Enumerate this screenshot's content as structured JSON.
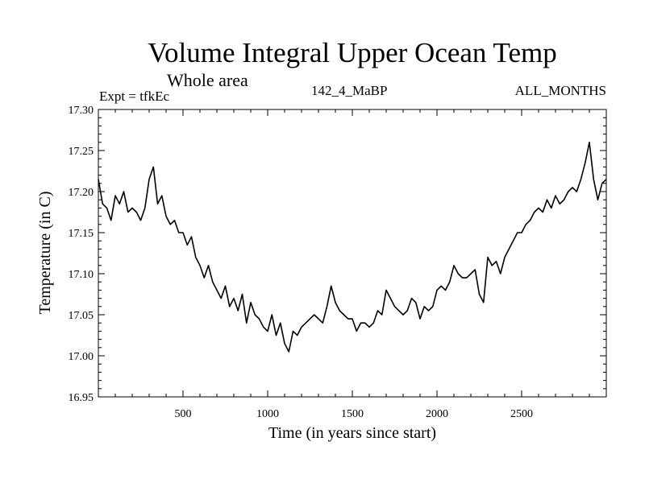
{
  "chart_data": {
    "type": "line",
    "title": "Volume Integral Upper Ocean Temp",
    "subtitle": "Whole area",
    "annotations": {
      "expt": "Expt = tfkEc",
      "run": "142_4_MaBP",
      "months": "ALL_MONTHS"
    },
    "xlabel": "Time (in years since start)",
    "ylabel": "Temperature (in C)",
    "xlim": [
      0,
      3000
    ],
    "ylim": [
      16.95,
      17.3
    ],
    "xticks": [
      "500",
      "1000",
      "1500",
      "2000",
      "2500"
    ],
    "yticks": [
      "16.95",
      "17.00",
      "17.05",
      "17.10",
      "17.15",
      "17.20",
      "17.25",
      "17.30"
    ],
    "grid": false,
    "color": "#000000",
    "series": [
      {
        "x": [
          0,
          25,
          50,
          75,
          100,
          125,
          150,
          175,
          200,
          225,
          250,
          275,
          300,
          325,
          350,
          375,
          400,
          425,
          450,
          475,
          500,
          525,
          550,
          575,
          600,
          625,
          650,
          675,
          700,
          725,
          750,
          775,
          800,
          825,
          850,
          875,
          900,
          925,
          950,
          975,
          1000,
          1025,
          1050,
          1075,
          1100,
          1125,
          1150,
          1175,
          1200,
          1225,
          1250,
          1275,
          1300,
          1325,
          1350,
          1375,
          1400,
          1425,
          1450,
          1475,
          1500,
          1525,
          1550,
          1575,
          1600,
          1625,
          1650,
          1675,
          1700,
          1725,
          1750,
          1775,
          1800,
          1825,
          1850,
          1875,
          1900,
          1925,
          1950,
          1975,
          2000,
          2025,
          2050,
          2075,
          2100,
          2125,
          2150,
          2175,
          2200,
          2225,
          2250,
          2275,
          2300,
          2325,
          2350,
          2375,
          2400,
          2425,
          2450,
          2475,
          2500,
          2525,
          2550,
          2575,
          2600,
          2625,
          2650,
          2675,
          2700,
          2725,
          2750,
          2775,
          2800,
          2825,
          2850,
          2875,
          2900,
          2925,
          2950,
          2975,
          3000
        ],
        "values": [
          17.215,
          17.185,
          17.18,
          17.165,
          17.195,
          17.185,
          17.2,
          17.175,
          17.18,
          17.175,
          17.165,
          17.18,
          17.215,
          17.23,
          17.185,
          17.195,
          17.17,
          17.16,
          17.165,
          17.15,
          17.15,
          17.135,
          17.145,
          17.12,
          17.11,
          17.095,
          17.11,
          17.09,
          17.08,
          17.07,
          17.085,
          17.06,
          17.07,
          17.055,
          17.075,
          17.04,
          17.065,
          17.05,
          17.045,
          17.035,
          17.03,
          17.05,
          17.025,
          17.04,
          17.015,
          17.005,
          17.03,
          17.025,
          17.035,
          17.04,
          17.045,
          17.05,
          17.045,
          17.04,
          17.06,
          17.085,
          17.065,
          17.055,
          17.05,
          17.045,
          17.045,
          17.03,
          17.04,
          17.04,
          17.035,
          17.04,
          17.055,
          17.05,
          17.08,
          17.07,
          17.06,
          17.055,
          17.05,
          17.055,
          17.07,
          17.065,
          17.045,
          17.06,
          17.055,
          17.06,
          17.08,
          17.085,
          17.08,
          17.09,
          17.11,
          17.1,
          17.095,
          17.095,
          17.1,
          17.105,
          17.075,
          17.065,
          17.12,
          17.11,
          17.115,
          17.1,
          17.12,
          17.13,
          17.14,
          17.15,
          17.15,
          17.16,
          17.165,
          17.175,
          17.18,
          17.175,
          17.19,
          17.18,
          17.195,
          17.185,
          17.19,
          17.2,
          17.205,
          17.2,
          17.215,
          17.235,
          17.26,
          17.215,
          17.19,
          17.21,
          17.215
        ]
      }
    ]
  }
}
